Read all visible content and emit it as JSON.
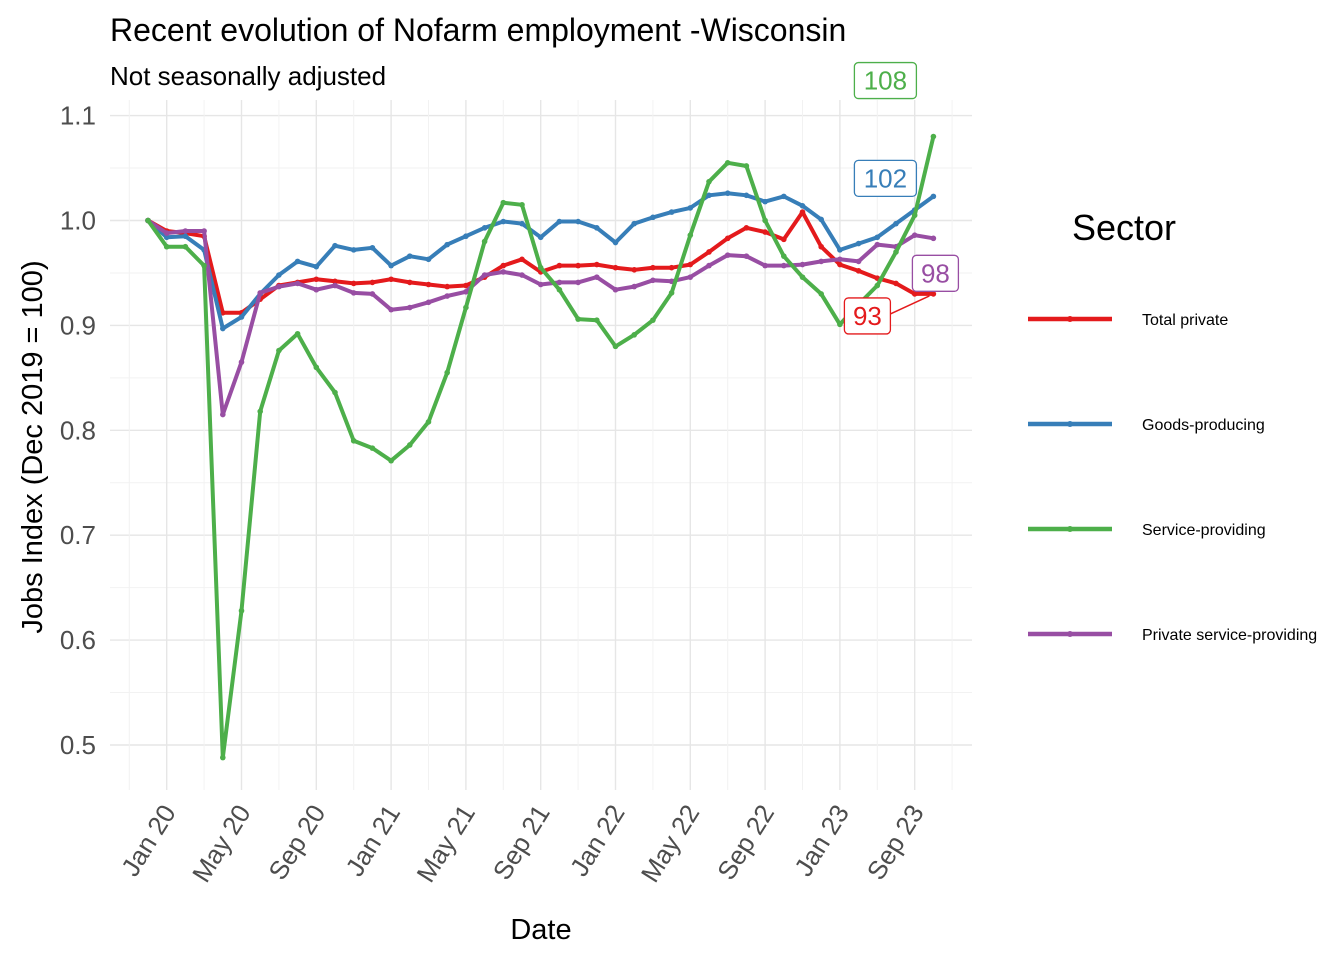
{
  "chart_data": {
    "type": "line",
    "title": "Recent evolution of Nofarm employment -Wisconsin",
    "subtitle": "Not seasonally adjusted",
    "xlabel": "Date",
    "ylabel": "Jobs Index (Dec 2019 = 100)",
    "ylim": [
      0.455,
      1.1
    ],
    "y_ticks": [
      0.5,
      0.6,
      0.7,
      0.8,
      0.9,
      1.0,
      1.1
    ],
    "y_tick_labels": [
      "0.5",
      "0.6",
      "0.7",
      "0.8",
      "0.9",
      "1.0",
      "1.1"
    ],
    "x_ticks": [
      "2020-01",
      "2020-05",
      "2020-09",
      "2021-01",
      "2021-05",
      "2021-09",
      "2022-01",
      "2022-05",
      "2022-09",
      "2023-01",
      "2023-05"
    ],
    "x_tick_labels": [
      "Jan 20",
      "May 20",
      "Sep 20",
      "Jan 21",
      "May 21",
      "Sep 21",
      "Jan 22",
      "May 22",
      "Sep 22",
      "Jan 23",
      "Sep 23"
    ],
    "x": [
      "2019-12",
      "2020-01",
      "2020-02",
      "2020-03",
      "2020-04",
      "2020-05",
      "2020-06",
      "2020-07",
      "2020-08",
      "2020-09",
      "2020-10",
      "2020-11",
      "2020-12",
      "2021-01",
      "2021-02",
      "2021-03",
      "2021-04",
      "2021-05",
      "2021-06",
      "2021-07",
      "2021-08",
      "2021-09",
      "2021-10",
      "2021-11",
      "2021-12",
      "2022-01",
      "2022-02",
      "2022-03",
      "2022-04",
      "2022-05",
      "2022-06",
      "2022-07",
      "2022-08",
      "2022-09",
      "2022-10",
      "2022-11",
      "2022-12",
      "2023-01",
      "2023-02",
      "2023-03",
      "2023-04",
      "2023-05",
      "2023-06"
    ],
    "grid": true,
    "legend_title": "Sector",
    "legend_position": "right",
    "series": [
      {
        "name": "Total private",
        "color": "#e41a1c",
        "end_label": "93",
        "values": [
          1.0,
          0.99,
          0.988,
          0.985,
          0.912,
          0.912,
          0.925,
          0.938,
          0.941,
          0.944,
          0.942,
          0.94,
          0.941,
          0.944,
          0.941,
          0.939,
          0.937,
          0.938,
          0.946,
          0.957,
          0.963,
          0.951,
          0.957,
          0.957,
          0.958,
          0.955,
          0.953,
          0.955,
          0.955,
          0.958,
          0.97,
          0.983,
          0.993,
          0.989,
          0.982,
          1.008,
          0.975,
          0.958,
          0.952,
          0.945,
          0.94,
          0.93,
          0.93
        ]
      },
      {
        "name": "Goods-producing",
        "color": "#377eb8",
        "end_label": "102",
        "values": [
          1.0,
          0.984,
          0.985,
          0.972,
          0.897,
          0.908,
          0.93,
          0.948,
          0.961,
          0.956,
          0.976,
          0.972,
          0.974,
          0.957,
          0.966,
          0.963,
          0.977,
          0.985,
          0.993,
          0.999,
          0.997,
          0.984,
          0.999,
          0.999,
          0.993,
          0.979,
          0.997,
          1.003,
          1.008,
          1.012,
          1.024,
          1.026,
          1.024,
          1.018,
          1.023,
          1.014,
          1.001,
          0.972,
          0.978,
          0.984,
          0.997,
          1.01,
          1.023
        ]
      },
      {
        "name": "Service-providing",
        "color": "#4daf4a",
        "end_label": "108",
        "values": [
          1.0,
          0.975,
          0.975,
          0.957,
          0.488,
          0.628,
          0.818,
          0.876,
          0.892,
          0.86,
          0.836,
          0.79,
          0.783,
          0.771,
          0.786,
          0.808,
          0.855,
          0.917,
          0.98,
          1.017,
          1.015,
          0.955,
          0.934,
          0.906,
          0.905,
          0.88,
          0.891,
          0.905,
          0.931,
          0.986,
          1.037,
          1.055,
          1.052,
          1.0,
          0.966,
          0.946,
          0.93,
          0.901,
          0.92,
          0.938,
          0.97,
          1.005,
          1.08
        ]
      },
      {
        "name": "Private service-providing",
        "color": "#984ea3",
        "end_label": "98",
        "values": [
          1.0,
          0.988,
          0.99,
          0.99,
          0.815,
          0.865,
          0.931,
          0.937,
          0.94,
          0.934,
          0.938,
          0.931,
          0.93,
          0.915,
          0.917,
          0.922,
          0.928,
          0.932,
          0.948,
          0.951,
          0.948,
          0.939,
          0.941,
          0.941,
          0.946,
          0.934,
          0.937,
          0.943,
          0.942,
          0.946,
          0.957,
          0.967,
          0.966,
          0.957,
          0.957,
          0.958,
          0.961,
          0.963,
          0.961,
          0.977,
          0.975,
          0.986,
          0.983
        ]
      }
    ]
  }
}
